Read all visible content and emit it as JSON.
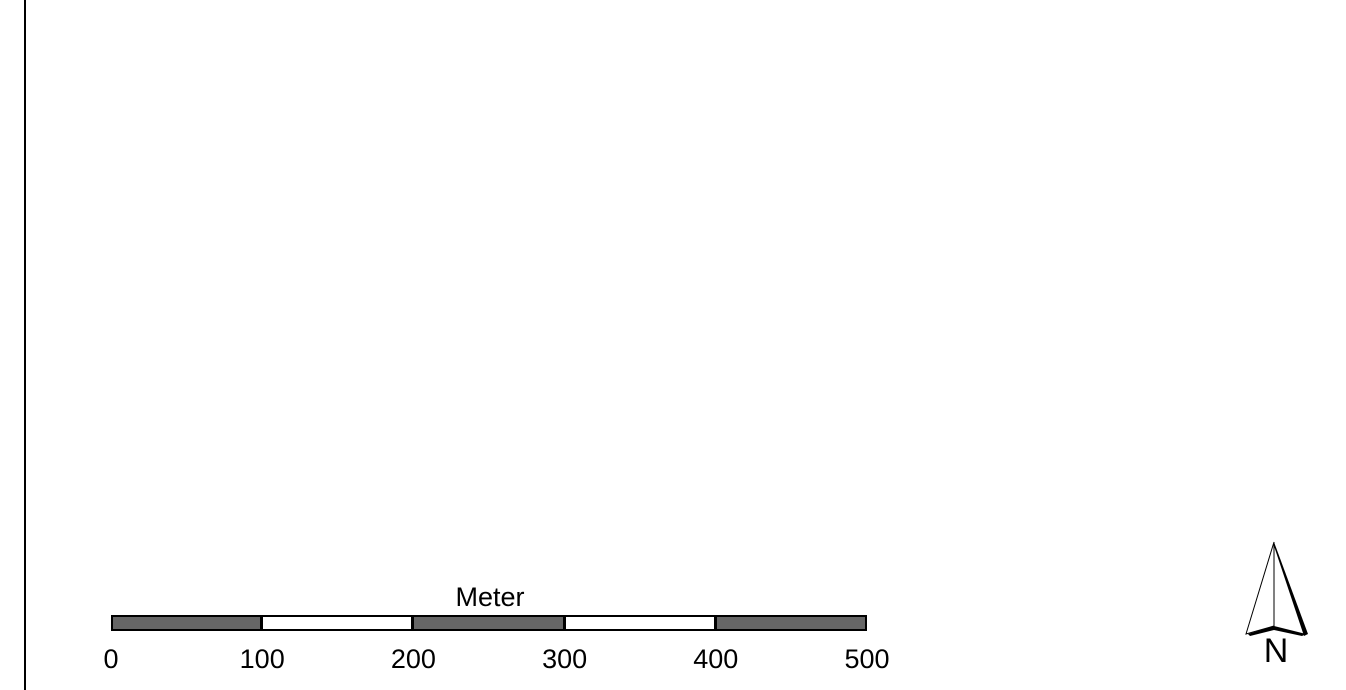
{
  "map": {
    "scale_bar": {
      "unit": "Meter",
      "ticks": [
        "0",
        "100",
        "200",
        "300",
        "400",
        "500"
      ],
      "segment_fills": [
        "#666666",
        "#ffffff",
        "#666666",
        "#ffffff",
        "#666666"
      ]
    },
    "north_arrow": {
      "label": "N"
    }
  }
}
